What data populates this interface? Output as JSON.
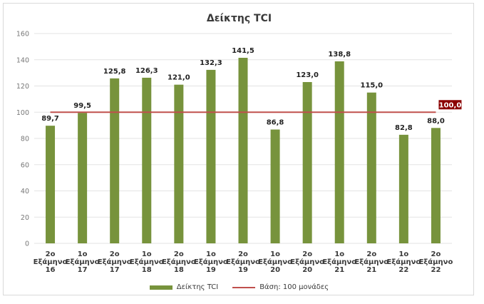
{
  "chart_data": {
    "type": "bar",
    "title": "Δείκτης TCI",
    "categories": [
      [
        "2ο",
        "Εξάμηνο",
        "16"
      ],
      [
        "1ο",
        "Εξάμηνο",
        "17"
      ],
      [
        "2ο",
        "Εξάμηνο",
        "17"
      ],
      [
        "1ο",
        "Εξάμηνο",
        "18"
      ],
      [
        "2ο",
        "Εξάμηνο",
        "18"
      ],
      [
        "1ο",
        "Εξάμηνο",
        "19"
      ],
      [
        "2ο",
        "Εξάμηνο",
        "19"
      ],
      [
        "1ο",
        "Εξάμηνο",
        "20"
      ],
      [
        "2ο",
        "Εξάμηνο",
        "20"
      ],
      [
        "1ο",
        "Εξάμηνο",
        "21"
      ],
      [
        "2ο",
        "Εξάμηνο",
        "21"
      ],
      [
        "1ο",
        "Εξάμηνο",
        "22"
      ],
      [
        "2ο",
        "Εξάμηνο",
        "22"
      ]
    ],
    "series": [
      {
        "name": "Δείκτης TCI",
        "type": "bar",
        "color": "#77933c",
        "values": [
          89.7,
          99.5,
          125.8,
          126.3,
          121.0,
          132.3,
          141.5,
          86.8,
          123.0,
          138.8,
          115.0,
          82.8,
          88.0
        ],
        "labels": [
          "89,7",
          "99,5",
          "125,8",
          "126,3",
          "121,0",
          "132,3",
          "141,5",
          "86,8",
          "123,0",
          "138,8",
          "115,0",
          "82,8",
          "88,0"
        ]
      },
      {
        "name": "Βάση: 100 μονάδες",
        "type": "line",
        "color": "#c0504d",
        "value": 100,
        "label": "100,0",
        "label_bg": "#8b0000"
      }
    ],
    "ylim": [
      0,
      160
    ],
    "yticks": [
      0,
      20,
      40,
      60,
      80,
      100,
      120,
      140,
      160
    ],
    "grid": true,
    "legend": "bottom"
  }
}
